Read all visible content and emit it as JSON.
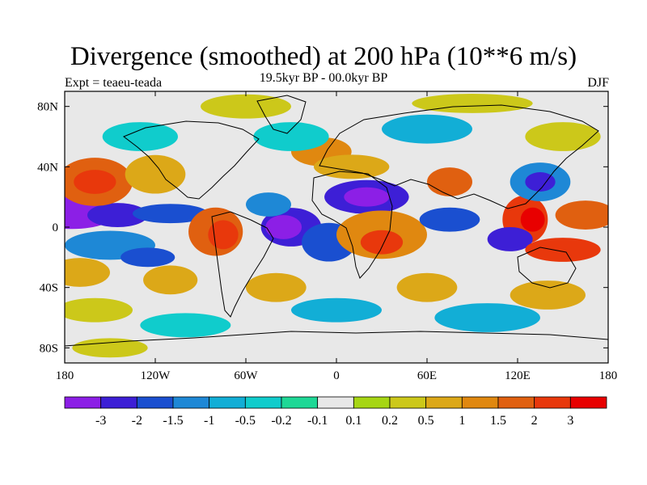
{
  "plot": {
    "title": "Divergence (smoothed) at 200 hPa (10**6 m/s)",
    "subtitle": "19.5kyr BP - 00.0kyr BP",
    "experiment": "Expt = teaeu-teada",
    "season": "DJF"
  },
  "axes": {
    "x_ticks": [
      "180",
      "120W",
      "60W",
      "0",
      "60E",
      "120E",
      "180"
    ],
    "x_values": [
      -180,
      -120,
      -60,
      0,
      60,
      120,
      180
    ],
    "y_ticks": [
      "80N",
      "40N",
      "0",
      "40S",
      "80S"
    ],
    "y_values": [
      80,
      40,
      0,
      -40,
      -80
    ],
    "lon_range": [
      -180,
      180
    ],
    "lat_range": [
      -90,
      90
    ]
  },
  "colorbar": {
    "labels": [
      "-3",
      "-2",
      "-1.5",
      "-1",
      "-0.5",
      "-0.2",
      "-0.1",
      "0.1",
      "0.2",
      "0.5",
      "1",
      "1.5",
      "2",
      "3"
    ],
    "colors": [
      "#8c1fe6",
      "#3d1fd6",
      "#1a4fd0",
      "#1e88d6",
      "#12aed6",
      "#10cccc",
      "#1ed896",
      "#e8e8e8",
      "#a6d614",
      "#ccc81a",
      "#dca818",
      "#e08810",
      "#e06010",
      "#e8380c",
      "#e80000"
    ]
  },
  "map_regions": [
    {
      "lon": -175,
      "lat": 10,
      "rx": 30,
      "ry": 7,
      "c": 0
    },
    {
      "lon": -145,
      "lat": 8,
      "rx": 20,
      "ry": 5,
      "c": 1
    },
    {
      "lon": -110,
      "lat": 9,
      "rx": 25,
      "ry": 4,
      "c": 2
    },
    {
      "lon": -150,
      "lat": -12,
      "rx": 30,
      "ry": 6,
      "c": 3
    },
    {
      "lon": -125,
      "lat": -20,
      "rx": 18,
      "ry": 4,
      "c": 2
    },
    {
      "lon": -160,
      "lat": 30,
      "rx": 25,
      "ry": 10,
      "c": 12
    },
    {
      "lon": -160,
      "lat": 30,
      "rx": 14,
      "ry": 5,
      "c": 13
    },
    {
      "lon": -120,
      "lat": 35,
      "rx": 20,
      "ry": 8,
      "c": 10
    },
    {
      "lon": -170,
      "lat": -30,
      "rx": 20,
      "ry": 6,
      "c": 10
    },
    {
      "lon": -110,
      "lat": -35,
      "rx": 18,
      "ry": 6,
      "c": 10
    },
    {
      "lon": -160,
      "lat": -55,
      "rx": 25,
      "ry": 5,
      "c": 9
    },
    {
      "lon": -80,
      "lat": -3,
      "rx": 18,
      "ry": 10,
      "c": 12
    },
    {
      "lon": -75,
      "lat": -5,
      "rx": 10,
      "ry": 6,
      "c": 13
    },
    {
      "lon": -30,
      "lat": 0,
      "rx": 20,
      "ry": 8,
      "c": 1
    },
    {
      "lon": -35,
      "lat": 0,
      "rx": 12,
      "ry": 5,
      "c": 0
    },
    {
      "lon": -5,
      "lat": -10,
      "rx": 18,
      "ry": 8,
      "c": 2
    },
    {
      "lon": -45,
      "lat": 15,
      "rx": 15,
      "ry": 5,
      "c": 3
    },
    {
      "lon": 20,
      "lat": 20,
      "rx": 28,
      "ry": 7,
      "c": 1
    },
    {
      "lon": 20,
      "lat": 20,
      "rx": 15,
      "ry": 4,
      "c": 0
    },
    {
      "lon": 30,
      "lat": -5,
      "rx": 30,
      "ry": 10,
      "c": 11
    },
    {
      "lon": 30,
      "lat": -10,
      "rx": 14,
      "ry": 5,
      "c": 13
    },
    {
      "lon": -10,
      "lat": 50,
      "rx": 20,
      "ry": 6,
      "c": 11
    },
    {
      "lon": 10,
      "lat": 40,
      "rx": 25,
      "ry": 5,
      "c": 10
    },
    {
      "lon": 75,
      "lat": 30,
      "rx": 15,
      "ry": 6,
      "c": 12
    },
    {
      "lon": 75,
      "lat": 5,
      "rx": 20,
      "ry": 5,
      "c": 2
    },
    {
      "lon": 125,
      "lat": 5,
      "rx": 15,
      "ry": 10,
      "c": 13
    },
    {
      "lon": 130,
      "lat": 5,
      "rx": 8,
      "ry": 5,
      "c": 14
    },
    {
      "lon": 135,
      "lat": 30,
      "rx": 20,
      "ry": 8,
      "c": 3
    },
    {
      "lon": 135,
      "lat": 30,
      "rx": 10,
      "ry": 4,
      "c": 1
    },
    {
      "lon": 115,
      "lat": -8,
      "rx": 15,
      "ry": 5,
      "c": 1
    },
    {
      "lon": 150,
      "lat": -15,
      "rx": 25,
      "ry": 5,
      "c": 13
    },
    {
      "lon": 165,
      "lat": 8,
      "rx": 20,
      "ry": 6,
      "c": 12
    },
    {
      "lon": 60,
      "lat": -40,
      "rx": 20,
      "ry": 6,
      "c": 10
    },
    {
      "lon": 140,
      "lat": -45,
      "rx": 25,
      "ry": 6,
      "c": 10
    },
    {
      "lon": -40,
      "lat": -40,
      "rx": 20,
      "ry": 6,
      "c": 10
    },
    {
      "lon": 0,
      "lat": -55,
      "rx": 30,
      "ry": 5,
      "c": 4
    },
    {
      "lon": 100,
      "lat": -60,
      "rx": 35,
      "ry": 6,
      "c": 4
    },
    {
      "lon": -100,
      "lat": -65,
      "rx": 30,
      "ry": 5,
      "c": 5
    },
    {
      "lon": -30,
      "lat": 60,
      "rx": 25,
      "ry": 6,
      "c": 5
    },
    {
      "lon": 60,
      "lat": 65,
      "rx": 30,
      "ry": 6,
      "c": 4
    },
    {
      "lon": -130,
      "lat": 60,
      "rx": 25,
      "ry": 6,
      "c": 5
    },
    {
      "lon": 150,
      "lat": 60,
      "rx": 25,
      "ry": 6,
      "c": 9
    },
    {
      "lon": -60,
      "lat": 80,
      "rx": 30,
      "ry": 5,
      "c": 9
    },
    {
      "lon": 90,
      "lat": 82,
      "rx": 40,
      "ry": 4,
      "c": 9
    },
    {
      "lon": -150,
      "lat": -80,
      "rx": 25,
      "ry": 4,
      "c": 9
    }
  ]
}
